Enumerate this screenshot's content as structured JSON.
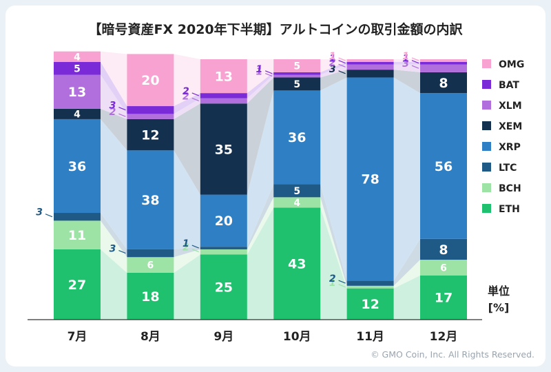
{
  "colors": {
    "ETH": "#1fc16f",
    "BCH": "#9ee3a6",
    "LTC": "#1f5a86",
    "XRP": "#2f7fc4",
    "XEM": "#13304f",
    "XLM": "#b06fdc",
    "BAT": "#7a2ad6",
    "OMG": "#f7a2d0"
  },
  "chart_data": {
    "type": "bar",
    "stacked": true,
    "title": "【暗号資産FX 2020年下半期】アルトコインの取引金額の内訳",
    "unit_label": [
      "単位",
      "[%]"
    ],
    "categories": [
      "7月",
      "8月",
      "9月",
      "10月",
      "11月",
      "12月"
    ],
    "series": [
      {
        "name": "ETH",
        "values": [
          27,
          18,
          25,
          43,
          12,
          17
        ]
      },
      {
        "name": "BCH",
        "values": [
          11,
          6,
          2,
          4,
          1,
          6
        ]
      },
      {
        "name": "LTC",
        "values": [
          3,
          3,
          1,
          5,
          2,
          8
        ]
      },
      {
        "name": "XRP",
        "values": [
          36,
          38,
          20,
          36,
          78,
          56
        ]
      },
      {
        "name": "XEM",
        "values": [
          4,
          12,
          35,
          5,
          3,
          8
        ]
      },
      {
        "name": "XLM",
        "values": [
          13,
          2,
          2,
          1,
          2,
          3
        ]
      },
      {
        "name": "BAT",
        "values": [
          5,
          3,
          2,
          1,
          1,
          1
        ]
      },
      {
        "name": "OMG",
        "values": [
          4,
          20,
          13,
          5,
          1,
          1
        ]
      }
    ],
    "legend_order": [
      "OMG",
      "BAT",
      "XLM",
      "XEM",
      "XRP",
      "LTC",
      "BCH",
      "ETH"
    ],
    "legend_position": "right",
    "ylim": [
      0,
      100
    ]
  },
  "copyright": "© GMO Coin, Inc. All Rights Reserved."
}
